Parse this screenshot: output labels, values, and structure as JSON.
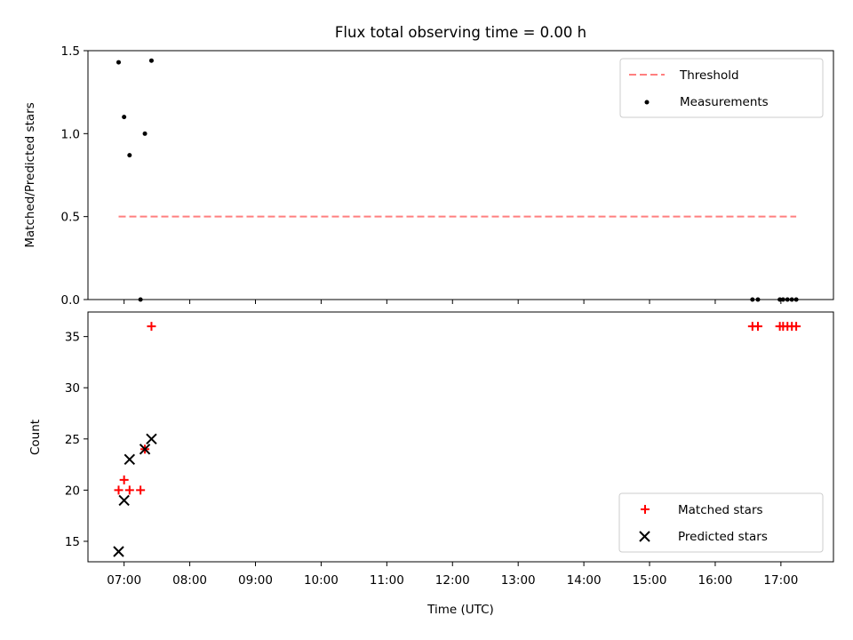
{
  "chart_data": [
    {
      "type": "scatter",
      "title": "Flux total observing time = 0.00 h",
      "ylabel": "Matched/Predicted stars",
      "xlim": [
        "06:27",
        "17:48"
      ],
      "ylim": [
        0,
        1.5
      ],
      "yticks": [
        0.0,
        0.5,
        1.0,
        1.5
      ],
      "ytick_labels": [
        "0.0",
        "0.5",
        "1.0",
        "1.5"
      ],
      "legend_position": "top-right",
      "threshold": {
        "name": "Threshold",
        "color": "#ff7f7f",
        "style": "dashed",
        "value": 0.5,
        "x_range": [
          "06:55",
          "17:14"
        ]
      },
      "series": [
        {
          "name": "Measurements",
          "color": "#000000",
          "marker": "dot",
          "points": [
            {
              "x": "06:55",
              "y": 1.43
            },
            {
              "x": "07:00",
              "y": 1.1
            },
            {
              "x": "07:05",
              "y": 0.87
            },
            {
              "x": "07:15",
              "y": 0.0
            },
            {
              "x": "07:19",
              "y": 1.0
            },
            {
              "x": "07:25",
              "y": 1.44
            },
            {
              "x": "16:34",
              "y": 0.0
            },
            {
              "x": "16:39",
              "y": 0.0
            },
            {
              "x": "16:59",
              "y": 0.0
            },
            {
              "x": "17:02",
              "y": 0.0
            },
            {
              "x": "17:06",
              "y": 0.0
            },
            {
              "x": "17:10",
              "y": 0.0
            },
            {
              "x": "17:14",
              "y": 0.0
            }
          ]
        }
      ]
    },
    {
      "type": "scatter",
      "xlabel": "Time (UTC)",
      "ylabel": "Count",
      "xlim": [
        "06:27",
        "17:48"
      ],
      "ylim": [
        13,
        37.4
      ],
      "xtick_labels": [
        "07:00",
        "08:00",
        "09:00",
        "10:00",
        "11:00",
        "12:00",
        "13:00",
        "14:00",
        "15:00",
        "16:00",
        "17:00"
      ],
      "yticks": [
        15,
        20,
        25,
        30,
        35
      ],
      "ytick_labels": [
        "15",
        "20",
        "25",
        "30",
        "35"
      ],
      "legend_position": "bottom-right",
      "series": [
        {
          "name": "Matched stars",
          "color": "#ff0000",
          "marker": "plus",
          "points": [
            {
              "x": "06:55",
              "y": 20
            },
            {
              "x": "07:00",
              "y": 21
            },
            {
              "x": "07:05",
              "y": 20
            },
            {
              "x": "07:15",
              "y": 20
            },
            {
              "x": "07:19",
              "y": 24
            },
            {
              "x": "07:25",
              "y": 36
            },
            {
              "x": "16:34",
              "y": 36
            },
            {
              "x": "16:39",
              "y": 36
            },
            {
              "x": "16:59",
              "y": 36
            },
            {
              "x": "17:02",
              "y": 36
            },
            {
              "x": "17:06",
              "y": 36
            },
            {
              "x": "17:10",
              "y": 36
            },
            {
              "x": "17:14",
              "y": 36
            }
          ]
        },
        {
          "name": "Predicted stars",
          "color": "#000000",
          "marker": "x",
          "points": [
            {
              "x": "06:55",
              "y": 14
            },
            {
              "x": "07:00",
              "y": 19
            },
            {
              "x": "07:05",
              "y": 23
            },
            {
              "x": "07:19",
              "y": 24
            },
            {
              "x": "07:25",
              "y": 25
            }
          ]
        }
      ]
    }
  ]
}
